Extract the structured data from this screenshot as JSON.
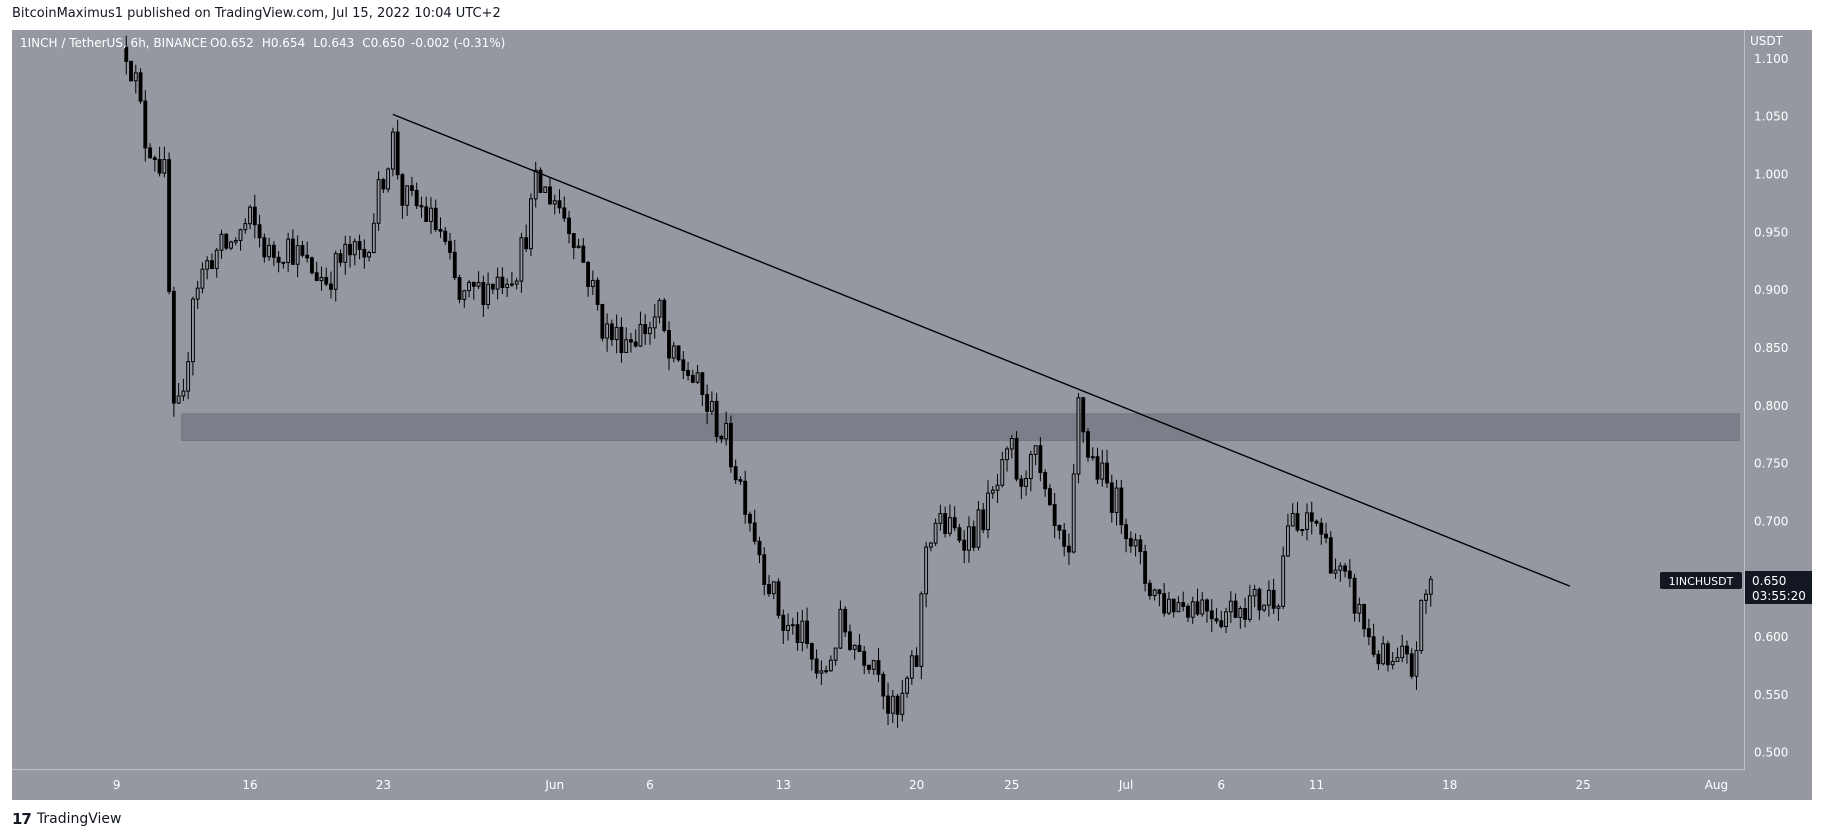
{
  "header": {
    "published_by": "BitcoinMaximus1 published on TradingView.com, Jul 15, 2022 10:04 UTC+2"
  },
  "symbol_info": {
    "title": "1INCH / TetherUS, 6h, BINANCE",
    "o_label": "O",
    "o_value": "0.652",
    "h_label": "H",
    "h_value": "0.654",
    "l_label": "L",
    "l_value": "0.643",
    "c_label": "C",
    "c_value": "0.650",
    "change": "-0.002 (-0.31%)"
  },
  "price_tag": {
    "symbol": "1INCHUSDT",
    "price": "0.650",
    "countdown": "03:55:20"
  },
  "footer": {
    "logo_glyph": "17",
    "brand": "TradingView"
  },
  "colors": {
    "plot_bg": "#9598a1",
    "candle": "#000000",
    "resistance_zone": "#787b86",
    "axis_text": "#ffffff",
    "price_tag_bg": "#131722"
  },
  "chart_data": {
    "type": "candlestick",
    "title": "1INCH / TetherUS, 6h, BINANCE",
    "y_axis_unit": "USDT",
    "y_ticks": [
      "1.100",
      "1.050",
      "1.000",
      "0.950",
      "0.900",
      "0.850",
      "0.800",
      "0.750",
      "0.700",
      "0.650",
      "0.600",
      "0.550",
      "0.500"
    ],
    "ylim": [
      0.485,
      1.125
    ],
    "x_ticks": [
      {
        "label": "9",
        "day": 0
      },
      {
        "label": "16",
        "day": 7
      },
      {
        "label": "23",
        "day": 14
      },
      {
        "label": "Jun",
        "day": 23
      },
      {
        "label": "6",
        "day": 28
      },
      {
        "label": "13",
        "day": 35
      },
      {
        "label": "20",
        "day": 42
      },
      {
        "label": "25",
        "day": 47
      },
      {
        "label": "Jul",
        "day": 53
      },
      {
        "label": "6",
        "day": 58
      },
      {
        "label": "11",
        "day": 63
      },
      {
        "label": "18",
        "day": 70
      },
      {
        "label": "25",
        "day": 77
      },
      {
        "label": "Aug",
        "day": 84
      }
    ],
    "xlim_days": [
      -5.5,
      85.5
    ],
    "close_path": [
      {
        "day": 0.5,
        "price": 1.11
      },
      {
        "day": 1.0,
        "price": 1.08
      },
      {
        "day": 1.5,
        "price": 1.03
      },
      {
        "day": 2.0,
        "price": 1.02
      },
      {
        "day": 2.5,
        "price": 1.0
      },
      {
        "day": 3.0,
        "price": 0.79
      },
      {
        "day": 3.5,
        "price": 0.8
      },
      {
        "day": 4.0,
        "price": 0.9
      },
      {
        "day": 5.0,
        "price": 0.93
      },
      {
        "day": 6.0,
        "price": 0.94
      },
      {
        "day": 7.0,
        "price": 0.96
      },
      {
        "day": 8.0,
        "price": 0.93
      },
      {
        "day": 9.0,
        "price": 0.94
      },
      {
        "day": 10.0,
        "price": 0.92
      },
      {
        "day": 11.0,
        "price": 0.91
      },
      {
        "day": 12.0,
        "price": 0.93
      },
      {
        "day": 13.0,
        "price": 0.93
      },
      {
        "day": 14.0,
        "price": 1.0
      },
      {
        "day": 14.5,
        "price": 1.03
      },
      {
        "day": 15.0,
        "price": 0.98
      },
      {
        "day": 16.0,
        "price": 0.97
      },
      {
        "day": 17.0,
        "price": 0.95
      },
      {
        "day": 18.0,
        "price": 0.89
      },
      {
        "day": 19.0,
        "price": 0.9
      },
      {
        "day": 20.0,
        "price": 0.91
      },
      {
        "day": 21.0,
        "price": 0.92
      },
      {
        "day": 21.5,
        "price": 0.95
      },
      {
        "day": 22.0,
        "price": 0.99
      },
      {
        "day": 23.0,
        "price": 0.98
      },
      {
        "day": 24.0,
        "price": 0.95
      },
      {
        "day": 25.0,
        "price": 0.9
      },
      {
        "day": 25.5,
        "price": 0.87
      },
      {
        "day": 26.0,
        "price": 0.86
      },
      {
        "day": 27.0,
        "price": 0.86
      },
      {
        "day": 28.0,
        "price": 0.87
      },
      {
        "day": 28.5,
        "price": 0.88
      },
      {
        "day": 29.0,
        "price": 0.84
      },
      {
        "day": 30.0,
        "price": 0.83
      },
      {
        "day": 31.0,
        "price": 0.8
      },
      {
        "day": 32.0,
        "price": 0.77
      },
      {
        "day": 33.0,
        "price": 0.72
      },
      {
        "day": 34.0,
        "price": 0.66
      },
      {
        "day": 35.0,
        "price": 0.61
      },
      {
        "day": 36.0,
        "price": 0.6
      },
      {
        "day": 37.0,
        "price": 0.56
      },
      {
        "day": 38.0,
        "price": 0.61
      },
      {
        "day": 39.0,
        "price": 0.59
      },
      {
        "day": 40.0,
        "price": 0.58
      },
      {
        "day": 40.5,
        "price": 0.54
      },
      {
        "day": 41.0,
        "price": 0.53
      },
      {
        "day": 41.5,
        "price": 0.56
      },
      {
        "day": 42.0,
        "price": 0.58
      },
      {
        "day": 42.5,
        "price": 0.68
      },
      {
        "day": 43.0,
        "price": 0.7
      },
      {
        "day": 44.0,
        "price": 0.69
      },
      {
        "day": 45.0,
        "price": 0.69
      },
      {
        "day": 46.0,
        "price": 0.72
      },
      {
        "day": 47.0,
        "price": 0.76
      },
      {
        "day": 47.5,
        "price": 0.72
      },
      {
        "day": 48.0,
        "price": 0.77
      },
      {
        "day": 49.0,
        "price": 0.7
      },
      {
        "day": 50.0,
        "price": 0.66
      },
      {
        "day": 50.5,
        "price": 0.8
      },
      {
        "day": 51.0,
        "price": 0.76
      },
      {
        "day": 52.0,
        "price": 0.73
      },
      {
        "day": 53.0,
        "price": 0.7
      },
      {
        "day": 54.0,
        "price": 0.65
      },
      {
        "day": 55.0,
        "price": 0.63
      },
      {
        "day": 56.0,
        "price": 0.63
      },
      {
        "day": 57.0,
        "price": 0.63
      },
      {
        "day": 58.0,
        "price": 0.62
      },
      {
        "day": 59.0,
        "price": 0.63
      },
      {
        "day": 60.0,
        "price": 0.63
      },
      {
        "day": 61.0,
        "price": 0.64
      },
      {
        "day": 61.5,
        "price": 0.7
      },
      {
        "day": 62.0,
        "price": 0.69
      },
      {
        "day": 63.0,
        "price": 0.7
      },
      {
        "day": 64.0,
        "price": 0.66
      },
      {
        "day": 65.0,
        "price": 0.63
      },
      {
        "day": 66.0,
        "price": 0.59
      },
      {
        "day": 66.5,
        "price": 0.58
      },
      {
        "day": 67.0,
        "price": 0.57
      },
      {
        "day": 67.5,
        "price": 0.58
      },
      {
        "day": 68.0,
        "price": 0.57
      },
      {
        "day": 68.5,
        "price": 0.62
      },
      {
        "day": 69.0,
        "price": 0.65
      }
    ],
    "annotations": [
      {
        "type": "trendline",
        "from": {
          "day": 14.5,
          "price": 1.052
        },
        "to": {
          "day": 76.3,
          "price": 0.644
        }
      },
      {
        "type": "horizontal_zone",
        "from_day": 3.4,
        "to_day": 85.2,
        "price_low": 0.77,
        "price_high": 0.793
      }
    ],
    "last_price": 0.65
  }
}
